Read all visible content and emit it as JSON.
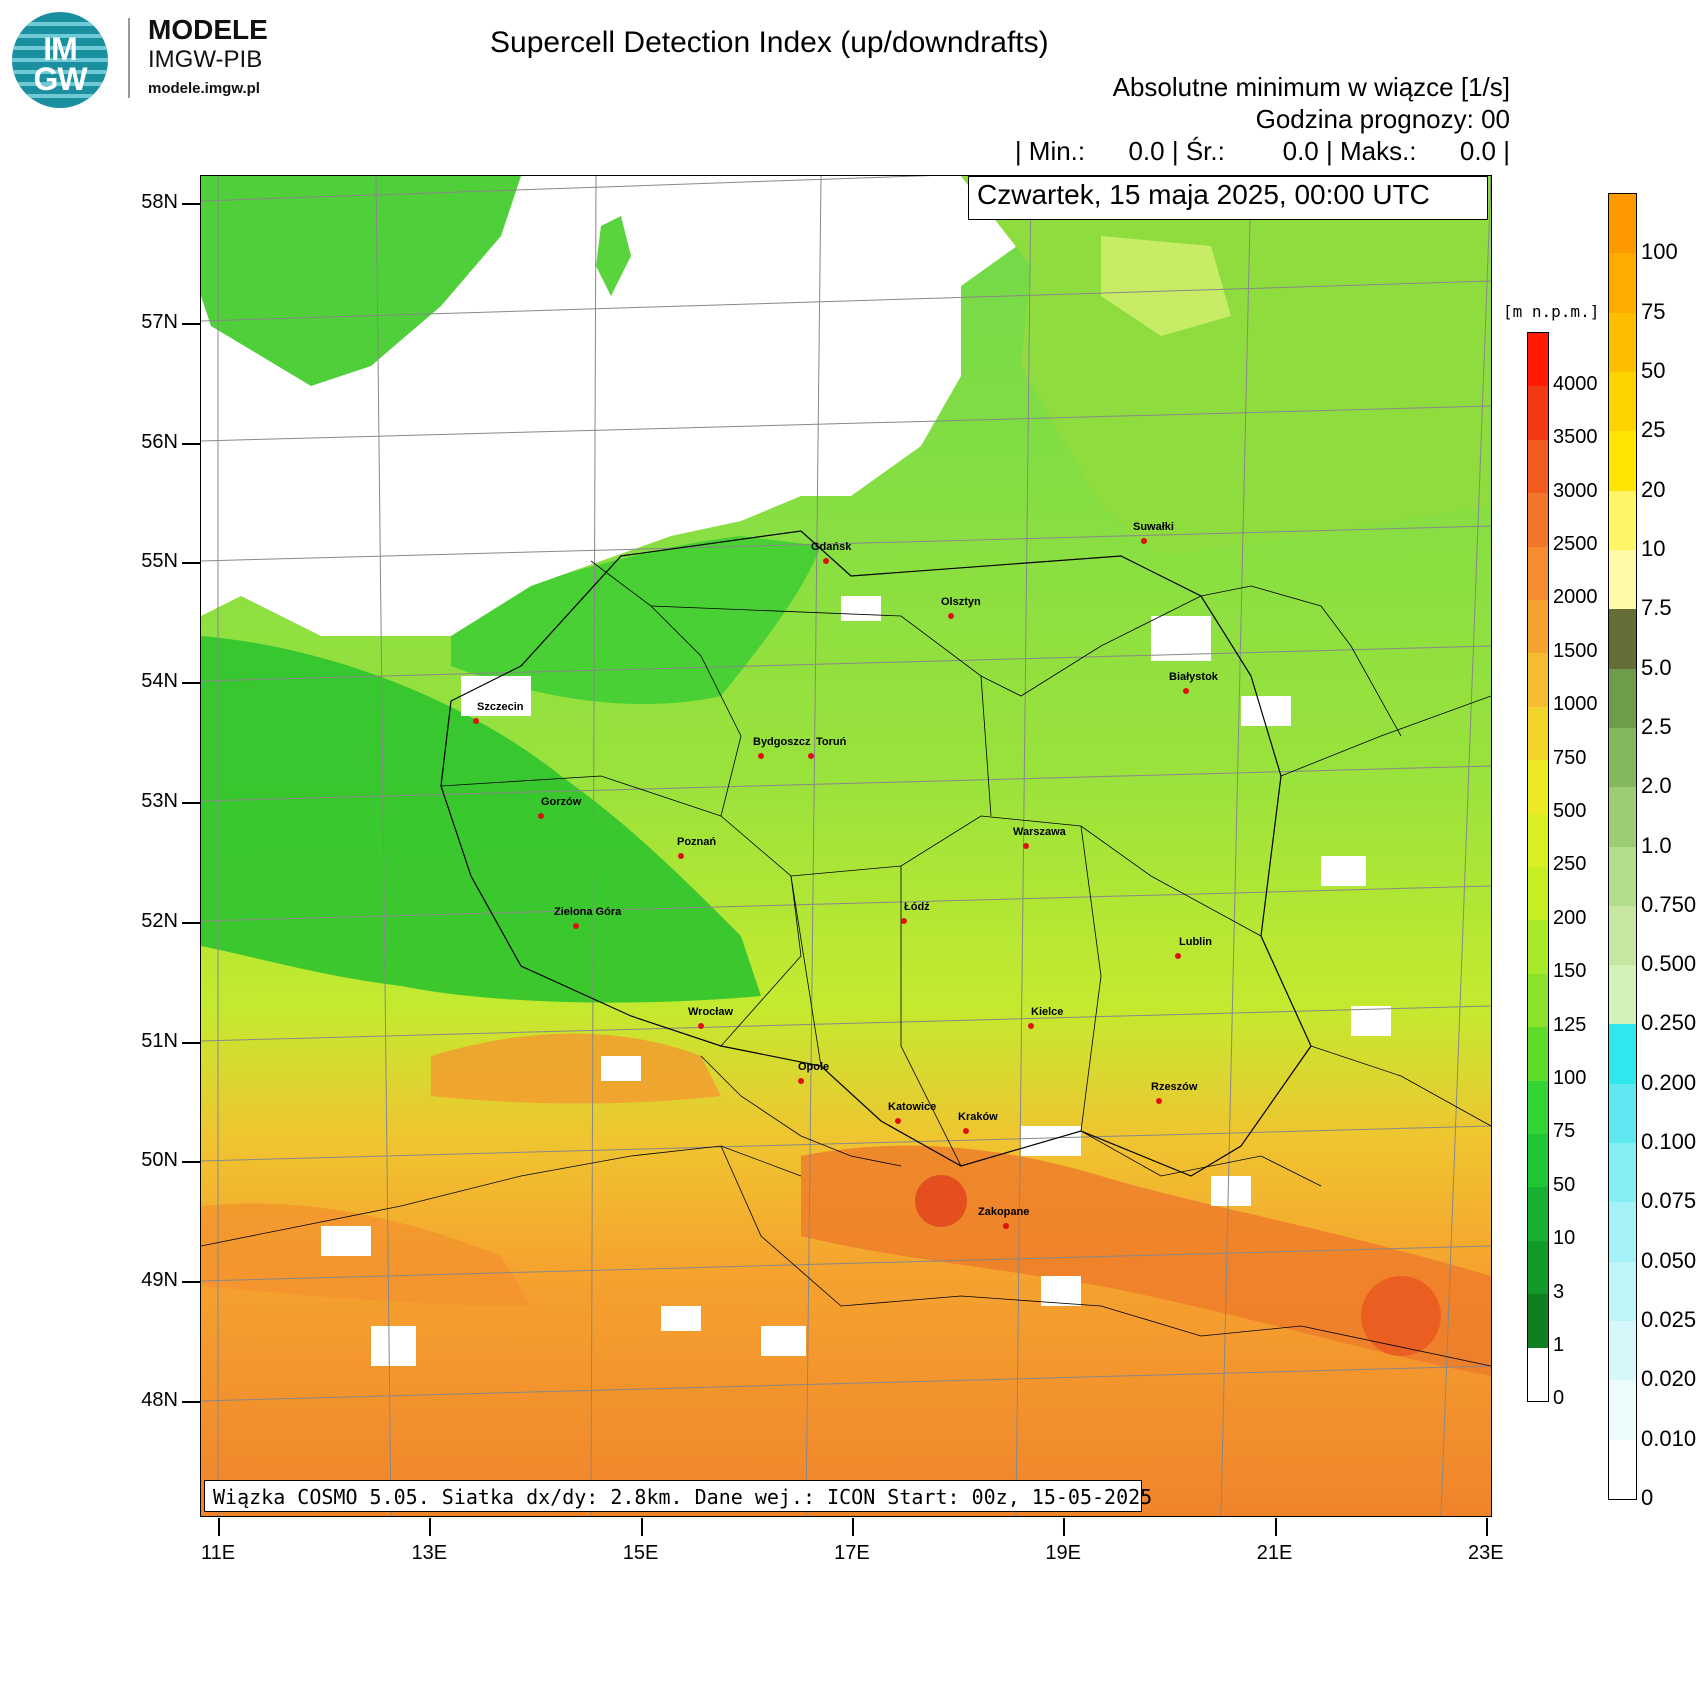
{
  "logo": {
    "text": "IM GW",
    "icon": "imgw-logo-icon"
  },
  "brand": {
    "title": "MODELE",
    "subtitle": "IMGW-PIB",
    "url": "modele.imgw.pl"
  },
  "header": {
    "title": "Supercell Detection Index (up/downdrafts)",
    "variable": "Absolutne minimum w wiązce [1/s]",
    "forecast_hour": "Godzina prognozy: 00",
    "stats": "| Min.:      0.0 | Śr.:        0.0 | Maks.:      0.0 |"
  },
  "date_label": "Czwartek, 15 maja 2025, 00:00 UTC",
  "footer": "Wiązka COSMO 5.05. Siatka dx/dy: 2.8km. Dane wej.: ICON Start: 00z, 15-05-2025",
  "lat_labels": [
    "58N",
    "57N",
    "56N",
    "55N",
    "54N",
    "53N",
    "52N",
    "51N",
    "50N",
    "49N",
    "48N"
  ],
  "lon_labels": [
    "11E",
    "13E",
    "15E",
    "17E",
    "19E",
    "21E",
    "23E"
  ],
  "cities": [
    "Gdańsk",
    "Olsztyn",
    "Suwałki",
    "Białystok",
    "Szczecin",
    "Bydgoszcz",
    "Toruń",
    "Gorzów",
    "Poznań",
    "Warszawa",
    "Zielona Góra",
    "Łódź",
    "Lublin",
    "Wrocław",
    "Kielce",
    "Opole",
    "Rzeszów",
    "Katowice",
    "Kraków",
    "Zakopane"
  ],
  "colorbar_terrain": {
    "unit": "[m n.p.m.]",
    "labels": [
      "4000",
      "3500",
      "3000",
      "2500",
      "2000",
      "1500",
      "1000",
      "750",
      "500",
      "250",
      "200",
      "150",
      "125",
      "100",
      "75",
      "50",
      "10",
      "3",
      "1",
      "0"
    ],
    "colors": [
      "#ff1a00",
      "#f23a10",
      "#f25b1e",
      "#f2762a",
      "#f58c2e",
      "#f5a32f",
      "#f5bd2f",
      "#f2d52b",
      "#ede925",
      "#d9ef22",
      "#c6ee22",
      "#a8e92a",
      "#8be22b",
      "#5edb2b",
      "#32d433",
      "#1ec633",
      "#17b030",
      "#129a2b",
      "#0f7f20",
      "#ffffff"
    ]
  },
  "colorbar_index": {
    "labels": [
      "100",
      "75",
      "50",
      "25",
      "20",
      "10",
      "7.5",
      "5.0",
      "2.5",
      "2.0",
      "1.0",
      "0.750",
      "0.500",
      "0.250",
      "0.200",
      "0.100",
      "0.075",
      "0.050",
      "0.025",
      "0.020",
      "0.010",
      "0"
    ],
    "colors": [
      "#ff9900",
      "#ffab00",
      "#ffbe00",
      "#ffd300",
      "#ffe500",
      "#fff566",
      "#fffaa8",
      "#666d36",
      "#6f9c4a",
      "#84b85c",
      "#9ccc74",
      "#b3dd8c",
      "#c6e6a2",
      "#d4f2b8",
      "#2ee8ee",
      "#5fe8ef",
      "#85eef3",
      "#a4f1f6",
      "#bff5f8",
      "#d6f8fa",
      "#ecfbfc",
      "#ffffff"
    ]
  }
}
